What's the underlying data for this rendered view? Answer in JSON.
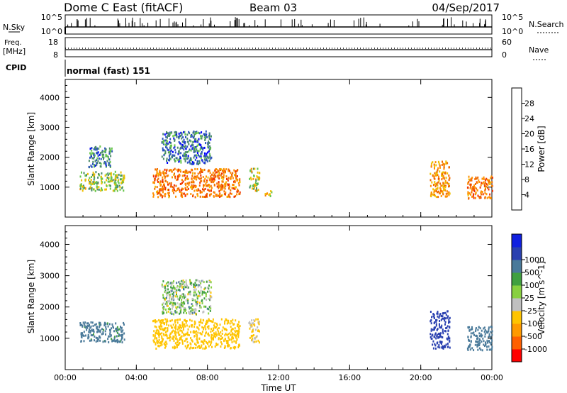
{
  "header": {
    "station": "Dome C East (fitACF)",
    "beam": "Beam 03",
    "date": "04/Sep/2017"
  },
  "status_panels": {
    "nsky_label": "N.Sky",
    "nsky_ticks": [
      "10^5",
      "10^0"
    ],
    "nsearch_label": "N.Search",
    "nsearch_ticks": [
      "10^5",
      "10^0"
    ],
    "freq_label_1": "Freq.",
    "freq_label_2": "[MHz]",
    "freq_ticks": [
      "18",
      "8"
    ],
    "nave_label": "Nave",
    "nave_ticks": [
      "60",
      "0"
    ],
    "cpid_label": "CPID",
    "cpid_text": "normal (fast) 151"
  },
  "colors": {
    "power_scale": [
      "#0000ff",
      "#2a52be",
      "#4a8a6a",
      "#66c64a",
      "#f0c000",
      "#ff9000",
      "#f06a00",
      "#f03000",
      "#e00000"
    ],
    "velocity_scale": [
      "#ff0000",
      "#ff6000",
      "#ff9a00",
      "#ffc400",
      "#c0c0c0",
      "#88d040",
      "#40a040",
      "#4a7a9a",
      "#2a40b0",
      "#1020e0"
    ]
  },
  "chart_data": [
    {
      "type": "heatmap",
      "name": "power",
      "xlabel": "",
      "ylabel": "Slant Range [km]",
      "x_range_hours": [
        0,
        24
      ],
      "ylim": [
        0,
        4600
      ],
      "y_ticks": [
        "1000",
        "2000",
        "3000",
        "4000"
      ],
      "colorbar_label": "Power [dB]",
      "colorbar_ticks": [
        "4",
        "8",
        "12",
        "16",
        "20",
        "24",
        "28"
      ],
      "colorbar_range": [
        0,
        32
      ],
      "regions": [
        {
          "t0": 0.8,
          "t1": 3.3,
          "r0": 900,
          "r1": 1550,
          "v": 13
        },
        {
          "t0": 1.3,
          "t1": 2.6,
          "r0": 1700,
          "r1": 2400,
          "v": 8
        },
        {
          "t0": 4.9,
          "t1": 9.8,
          "r0": 700,
          "r1": 1650,
          "v": 22
        },
        {
          "t0": 5.4,
          "t1": 8.2,
          "r0": 1800,
          "r1": 2900,
          "v": 7
        },
        {
          "t0": 10.3,
          "t1": 10.9,
          "r0": 900,
          "r1": 1650,
          "v": 14
        },
        {
          "t0": 11.2,
          "t1": 11.6,
          "r0": 700,
          "r1": 900,
          "v": 18
        },
        {
          "t0": 20.5,
          "t1": 21.6,
          "r0": 700,
          "r1": 1900,
          "v": 20
        },
        {
          "t0": 22.6,
          "t1": 24,
          "r0": 650,
          "r1": 1400,
          "v": 22
        }
      ]
    },
    {
      "type": "heatmap",
      "name": "velocity",
      "xlabel": "Time UT",
      "ylabel": "Slant Range [km]",
      "x_range_hours": [
        0,
        24
      ],
      "x_ticks": [
        "00:00",
        "04:00",
        "08:00",
        "12:00",
        "16:00",
        "20:00",
        "00:00"
      ],
      "ylim": [
        0,
        4600
      ],
      "y_ticks": [
        "1000",
        "2000",
        "3000",
        "4000"
      ],
      "colorbar_label": "Velocity [m s^-1]",
      "colorbar_ticks": [
        "-1000",
        "-500",
        "-100",
        "-25",
        "25",
        "100",
        "500",
        "1000"
      ],
      "regions": [
        {
          "t0": 0.8,
          "t1": 3.3,
          "r0": 900,
          "r1": 1550,
          "v": 200
        },
        {
          "t0": 4.9,
          "t1": 9.8,
          "r0": 700,
          "r1": 1650,
          "v": -300
        },
        {
          "t0": 5.4,
          "t1": 8.2,
          "r0": 1800,
          "r1": 2900,
          "v": 0
        },
        {
          "t0": 10.3,
          "t1": 10.9,
          "r0": 900,
          "r1": 1650,
          "v": -150
        },
        {
          "t0": 20.5,
          "t1": 21.6,
          "r0": 700,
          "r1": 1900,
          "v": 800
        },
        {
          "t0": 22.6,
          "t1": 24,
          "r0": 650,
          "r1": 1400,
          "v": 300
        }
      ]
    }
  ]
}
